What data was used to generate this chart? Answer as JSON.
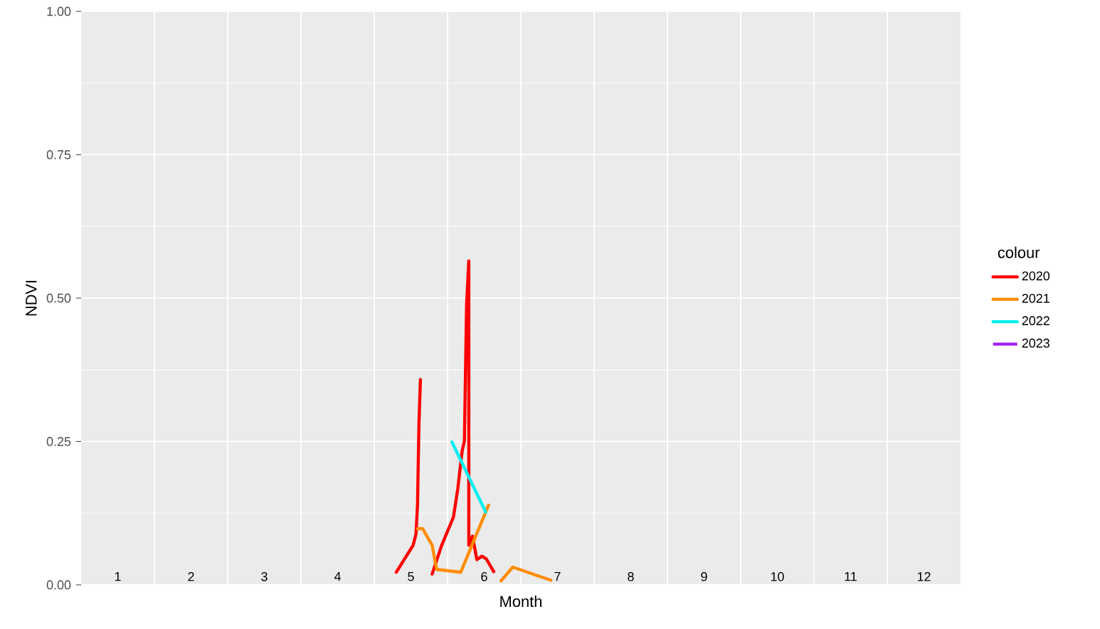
{
  "chart_data": {
    "type": "line",
    "xlabel": "Month",
    "ylabel": "NDVI",
    "legend_title": "colour",
    "xlim": [
      0.5,
      12.5
    ],
    "xticks": [
      {
        "value": 1,
        "label": "1"
      },
      {
        "value": 1.5,
        "label": null
      },
      {
        "value": 2,
        "label": "2"
      },
      {
        "value": 2.5,
        "label": null
      },
      {
        "value": 3,
        "label": "3"
      },
      {
        "value": 3.5,
        "label": null
      },
      {
        "value": 4,
        "label": "4"
      },
      {
        "value": 4.5,
        "label": null
      },
      {
        "value": 5,
        "label": "5"
      },
      {
        "value": 5.5,
        "label": null
      },
      {
        "value": 6,
        "label": "6"
      },
      {
        "value": 6.5,
        "label": null
      },
      {
        "value": 7,
        "label": "7"
      },
      {
        "value": 7.5,
        "label": null
      },
      {
        "value": 8,
        "label": "8"
      },
      {
        "value": 8.5,
        "label": null
      },
      {
        "value": 9,
        "label": "9"
      },
      {
        "value": 9.5,
        "label": null
      },
      {
        "value": 10,
        "label": "10"
      },
      {
        "value": 10.5,
        "label": null
      },
      {
        "value": 11,
        "label": "11"
      },
      {
        "value": 11.5,
        "label": null
      },
      {
        "value": 12,
        "label": "12"
      }
    ],
    "ylim": [
      0,
      1
    ],
    "yticks": [
      {
        "value": 0,
        "label": "0.00"
      },
      {
        "value": 0.25,
        "label": "0.25"
      },
      {
        "value": 0.5,
        "label": "0.50"
      },
      {
        "value": 0.75,
        "label": "0.75"
      },
      {
        "value": 1,
        "label": "1.00"
      }
    ],
    "grid": true,
    "legend": "right",
    "marker": "none",
    "line_style": "solid",
    "series": [
      {
        "name": "2020",
        "color": "#ff0000",
        "x": [
          4.8,
          5.03,
          5.07,
          5.09,
          5.11,
          5.13,
          5.2,
          5.29,
          5.42,
          5.58,
          5.64,
          5.7,
          5.73,
          5.74,
          5.76,
          5.79,
          5.79,
          5.84,
          5.9,
          5.97,
          6.03,
          6.13
        ],
        "values": [
          0.022,
          0.069,
          0.089,
          0.139,
          0.283,
          0.358,
          null,
          0.019,
          0.069,
          0.118,
          0.168,
          0.234,
          0.251,
          0.333,
          0.49,
          0.565,
          0.069,
          0.085,
          0.044,
          0.05,
          0.045,
          0.023
        ]
      },
      {
        "name": "2021",
        "color": "#ff8c00",
        "x": [
          5.09,
          5.16,
          5.29,
          5.35,
          5.68,
          6.06,
          6.15,
          6.23,
          6.39,
          6.91
        ],
        "values": [
          0.098,
          0.098,
          0.069,
          0.027,
          0.022,
          0.139,
          null,
          0.007,
          0.031,
          0.008
        ]
      },
      {
        "name": "2022",
        "color": "#00eeee",
        "x": [
          5.56,
          6.02
        ],
        "values": [
          0.249,
          0.127
        ]
      },
      {
        "name": "2023",
        "color": "#a020f0"
      }
    ]
  }
}
